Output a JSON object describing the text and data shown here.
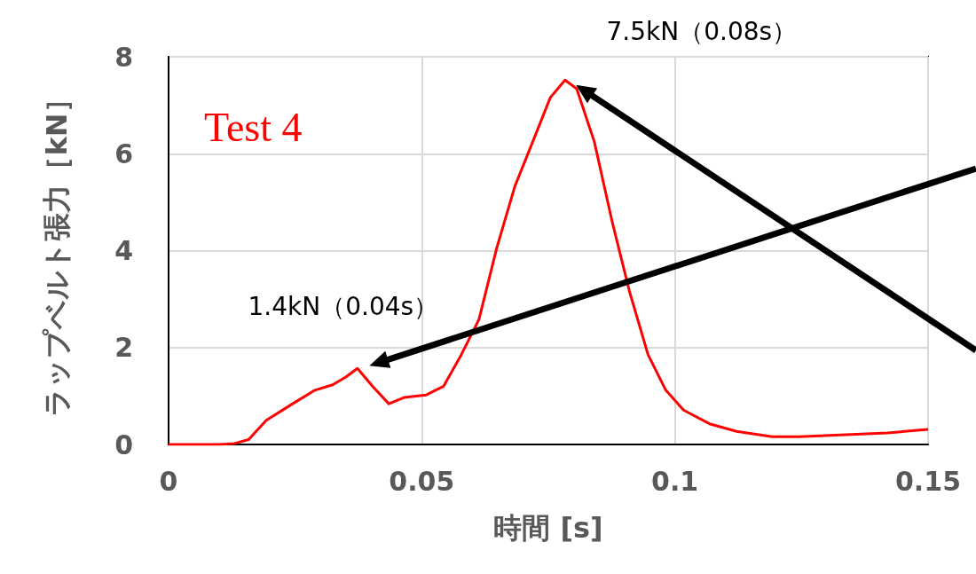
{
  "chart_data": {
    "type": "line",
    "xlabel": "時間 [s]",
    "ylabel": "ラップベルト張力［kN］",
    "x": [
      0,
      0.005,
      0.01,
      0.013,
      0.0158,
      0.0193,
      0.0245,
      0.0289,
      0.0324,
      0.035,
      0.0373,
      0.0403,
      0.0435,
      0.0465,
      0.0508,
      0.0543,
      0.0578,
      0.0613,
      0.0648,
      0.0684,
      0.0719,
      0.0754,
      0.0783,
      0.0806,
      0.0841,
      0.0876,
      0.0911,
      0.0947,
      0.0982,
      0.1017,
      0.107,
      0.1122,
      0.1192,
      0.1245,
      0.142,
      0.15
    ],
    "series": [
      {
        "color": "#ff0000",
        "values": [
          0,
          0,
          0,
          0.02,
          0.1,
          0.5,
          0.84,
          1.12,
          1.23,
          1.39,
          1.57,
          1.2,
          0.84,
          0.97,
          1.02,
          1.2,
          1.85,
          2.58,
          4.05,
          5.33,
          6.24,
          7.16,
          7.52,
          7.34,
          6.24,
          4.6,
          3.13,
          1.85,
          1.12,
          0.71,
          0.42,
          0.27,
          0.16,
          0.16,
          0.24,
          0.31
        ]
      }
    ],
    "xlim": [
      0,
      0.15
    ],
    "xticks": [
      0,
      0.05,
      0.1,
      0.15
    ],
    "ylim": [
      0,
      8
    ],
    "yticks": [
      0,
      2,
      4,
      6,
      8
    ],
    "grid": true,
    "marker": "none",
    "line_style": "solid",
    "annotations": [
      "Test 4",
      {
        "text": "7.5kN（0.08s）",
        "x": 0.079,
        "y": 7.52
      },
      {
        "text": "1.4kN（0.04s）",
        "x": 0.038,
        "y": 1.57
      }
    ]
  }
}
